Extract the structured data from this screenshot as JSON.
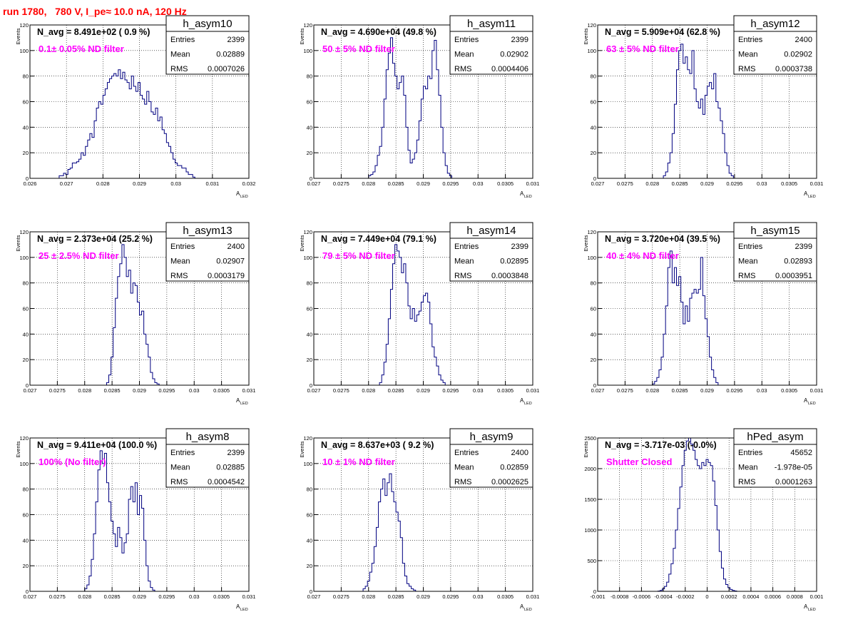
{
  "header": {
    "run_title": "run 1780,   780 V, I_pe≈ 10.0 nA, 120 Hz"
  },
  "colors": {
    "hist_line": "#000080",
    "annotation": "#ff00ff",
    "title": "#ff0000",
    "frame": "#000000",
    "grid": "#000000"
  },
  "chart_data": [
    {
      "type": "bar",
      "name": "h_asym10",
      "navg": "N_avg = 8.491e+02 ( 0.9 %)",
      "filter": "0.1± 0.05% ND filter",
      "stats": {
        "entries": "2399",
        "mean": "0.02889",
        "rms": "0.0007026"
      },
      "xlabel": "A",
      "xlabel_sub": "LED",
      "ylabel": "Events",
      "xlim": [
        0.026,
        0.032
      ],
      "ylim": [
        0,
        120
      ],
      "xticks": [
        0.026,
        0.027,
        0.028,
        0.029,
        0.03,
        0.031,
        0.032
      ],
      "xtick_labels": [
        "0.026",
        "0.027",
        "0.028",
        "0.029",
        "0.03",
        "0.031",
        "0.032"
      ],
      "yticks": [
        0,
        20,
        40,
        60,
        80,
        100,
        120
      ],
      "ytick_labels": [
        "0",
        "20",
        "40",
        "60",
        "80",
        "100",
        "120"
      ],
      "bin_start": 0.0268,
      "bin_width": 6e-05,
      "values": [
        2,
        2,
        4,
        3,
        7,
        8,
        12,
        12,
        13,
        15,
        20,
        18,
        25,
        30,
        35,
        32,
        45,
        55,
        60,
        58,
        65,
        70,
        75,
        78,
        80,
        82,
        80,
        85,
        78,
        83,
        77,
        75,
        70,
        80,
        72,
        68,
        75,
        65,
        62,
        58,
        68,
        60,
        52,
        50,
        55,
        45,
        48,
        38,
        35,
        28,
        25,
        20,
        15,
        12,
        10,
        10,
        8,
        8,
        5,
        3,
        3,
        1
      ]
    },
    {
      "type": "bar",
      "name": "h_asym11",
      "navg": "N_avg = 4.690e+04 (49.8 %)",
      "filter": "50 ± 5% ND filter",
      "stats": {
        "entries": "2399",
        "mean": "0.02902",
        "rms": "0.0004406"
      },
      "xlabel": "A",
      "xlabel_sub": "LED",
      "ylabel": "Events",
      "xlim": [
        0.027,
        0.031
      ],
      "ylim": [
        0,
        120
      ],
      "xticks": [
        0.027,
        0.0275,
        0.028,
        0.0285,
        0.029,
        0.0295,
        0.03,
        0.0305,
        0.031
      ],
      "xtick_labels": [
        "0.027",
        "0.0275",
        "0.028",
        "0.0285",
        "0.029",
        "0.0295",
        "0.03",
        "0.0305",
        "0.031"
      ],
      "yticks": [
        0,
        20,
        40,
        60,
        80,
        100,
        120
      ],
      "ytick_labels": [
        "0",
        "20",
        "40",
        "60",
        "80",
        "100",
        "120"
      ],
      "bin_start": 0.028,
      "bin_width": 4e-05,
      "values": [
        2,
        3,
        5,
        10,
        18,
        25,
        40,
        62,
        85,
        98,
        110,
        90,
        80,
        70,
        75,
        80,
        65,
        40,
        22,
        12,
        15,
        20,
        30,
        45,
        62,
        72,
        70,
        80,
        78,
        100,
        108,
        85,
        65,
        40,
        20,
        10,
        4,
        2
      ]
    },
    {
      "type": "bar",
      "name": "h_asym12",
      "navg": "N_avg = 5.909e+04 (62.8 %)",
      "filter": "63 ± 5% ND filter",
      "stats": {
        "entries": "2400",
        "mean": "0.02902",
        "rms": "0.0003738"
      },
      "xlabel": "A",
      "xlabel_sub": "LED",
      "ylabel": "Events",
      "xlim": [
        0.027,
        0.031
      ],
      "ylim": [
        0,
        120
      ],
      "xticks": [
        0.027,
        0.0275,
        0.028,
        0.0285,
        0.029,
        0.0295,
        0.03,
        0.0305,
        0.031
      ],
      "xtick_labels": [
        "0.027",
        "0.0275",
        "0.028",
        "0.0285",
        "0.029",
        "0.0295",
        "0.03",
        "0.0305",
        "0.031"
      ],
      "yticks": [
        0,
        20,
        40,
        60,
        80,
        100,
        120
      ],
      "ytick_labels": [
        "0",
        "20",
        "40",
        "60",
        "80",
        "100",
        "120"
      ],
      "bin_start": 0.0282,
      "bin_width": 4e-05,
      "values": [
        2,
        5,
        12,
        20,
        35,
        58,
        85,
        100,
        105,
        90,
        95,
        85,
        82,
        100,
        70,
        60,
        55,
        62,
        50,
        65,
        72,
        75,
        70,
        82,
        60,
        55,
        45,
        35,
        20,
        10,
        4,
        2
      ]
    },
    {
      "type": "bar",
      "name": "h_asym13",
      "navg": "N_avg = 2.373e+04 (25.2 %)",
      "filter": "25 ± 2.5% ND filter",
      "stats": {
        "entries": "2400",
        "mean": "0.02907",
        "rms": "0.0003179"
      },
      "xlabel": "A",
      "xlabel_sub": "LED",
      "ylabel": "Events",
      "xlim": [
        0.027,
        0.031
      ],
      "ylim": [
        0,
        120
      ],
      "xticks": [
        0.027,
        0.0275,
        0.028,
        0.0285,
        0.029,
        0.0295,
        0.03,
        0.0305,
        0.031
      ],
      "xtick_labels": [
        "0.027",
        "0.0275",
        "0.028",
        "0.0285",
        "0.029",
        "0.0295",
        "0.03",
        "0.0305",
        "0.031"
      ],
      "yticks": [
        0,
        20,
        40,
        60,
        80,
        100,
        120
      ],
      "ytick_labels": [
        "0",
        "20",
        "40",
        "60",
        "80",
        "100",
        "120"
      ],
      "bin_start": 0.0284,
      "bin_width": 4e-05,
      "values": [
        2,
        8,
        22,
        45,
        68,
        85,
        95,
        110,
        100,
        85,
        90,
        72,
        80,
        78,
        65,
        55,
        58,
        40,
        32,
        22,
        10,
        5,
        2,
        1
      ]
    },
    {
      "type": "bar",
      "name": "h_asym14",
      "navg": "N_avg = 7.449e+04 (79.1 %)",
      "filter": "79 ± 5% ND filter",
      "stats": {
        "entries": "2399",
        "mean": "0.02895",
        "rms": "0.0003848"
      },
      "xlabel": "A",
      "xlabel_sub": "LED",
      "ylabel": "Events",
      "xlim": [
        0.027,
        0.031
      ],
      "ylim": [
        0,
        120
      ],
      "xticks": [
        0.027,
        0.0275,
        0.028,
        0.0285,
        0.029,
        0.0295,
        0.03,
        0.0305,
        0.031
      ],
      "xtick_labels": [
        "0.027",
        "0.0275",
        "0.028",
        "0.0285",
        "0.029",
        "0.0295",
        "0.03",
        "0.0305",
        "0.031"
      ],
      "yticks": [
        0,
        20,
        40,
        60,
        80,
        100,
        120
      ],
      "ytick_labels": [
        "0",
        "20",
        "40",
        "60",
        "80",
        "100",
        "120"
      ],
      "bin_start": 0.0282,
      "bin_width": 4e-05,
      "values": [
        2,
        8,
        18,
        32,
        52,
        75,
        95,
        110,
        105,
        100,
        88,
        95,
        80,
        62,
        52,
        60,
        50,
        55,
        58,
        65,
        70,
        72,
        65,
        48,
        30,
        22,
        15,
        8,
        4,
        2
      ]
    },
    {
      "type": "bar",
      "name": "h_asym15",
      "navg": "N_avg = 3.720e+04 (39.5 %)",
      "filter": "40 ± 4% ND filter",
      "stats": {
        "entries": "2399",
        "mean": "0.02893",
        "rms": "0.0003951"
      },
      "xlabel": "A",
      "xlabel_sub": "LED",
      "ylabel": "Events",
      "xlim": [
        0.027,
        0.031
      ],
      "ylim": [
        0,
        120
      ],
      "xticks": [
        0.027,
        0.0275,
        0.028,
        0.0285,
        0.029,
        0.0295,
        0.03,
        0.0305,
        0.031
      ],
      "xtick_labels": [
        "0.027",
        "0.0275",
        "0.028",
        "0.0285",
        "0.029",
        "0.0295",
        "0.03",
        "0.0305",
        "0.031"
      ],
      "yticks": [
        0,
        20,
        40,
        60,
        80,
        100,
        120
      ],
      "ytick_labels": [
        "0",
        "20",
        "40",
        "60",
        "80",
        "100",
        "120"
      ],
      "bin_start": 0.028,
      "bin_width": 4e-05,
      "values": [
        1,
        3,
        6,
        12,
        22,
        40,
        62,
        92,
        105,
        80,
        92,
        78,
        85,
        65,
        48,
        62,
        50,
        68,
        72,
        75,
        72,
        75,
        100,
        70,
        52,
        38,
        22,
        12,
        6,
        2
      ]
    },
    {
      "type": "bar",
      "name": "h_asym8",
      "navg": "N_avg = 9.411e+04 (100.0 %)",
      "filter": "100% (No filter)",
      "stats": {
        "entries": "2399",
        "mean": "0.02885",
        "rms": "0.0004542"
      },
      "xlabel": "A",
      "xlabel_sub": "LED",
      "ylabel": "Events",
      "xlim": [
        0.027,
        0.031
      ],
      "ylim": [
        0,
        120
      ],
      "xticks": [
        0.027,
        0.0275,
        0.028,
        0.0285,
        0.029,
        0.0295,
        0.03,
        0.0305,
        0.031
      ],
      "xtick_labels": [
        "0.027",
        "0.0275",
        "0.028",
        "0.0285",
        "0.029",
        "0.0295",
        "0.03",
        "0.0305",
        "0.031"
      ],
      "yticks": [
        0,
        20,
        40,
        60,
        80,
        100,
        120
      ],
      "ytick_labels": [
        "0",
        "20",
        "40",
        "60",
        "80",
        "100",
        "120"
      ],
      "bin_start": 0.028,
      "bin_width": 4e-05,
      "values": [
        2,
        5,
        12,
        25,
        45,
        70,
        95,
        110,
        100,
        108,
        85,
        70,
        55,
        45,
        35,
        50,
        42,
        30,
        38,
        45,
        72,
        82,
        70,
        85,
        60,
        75,
        65,
        40,
        20,
        8,
        3,
        1
      ]
    },
    {
      "type": "bar",
      "name": "h_asym9",
      "navg": "N_avg = 8.637e+03 ( 9.2 %)",
      "filter": "10 ± 1% ND filter",
      "stats": {
        "entries": "2400",
        "mean": "0.02859",
        "rms": "0.0002625"
      },
      "xlabel": "A",
      "xlabel_sub": "LED",
      "ylabel": "Events",
      "xlim": [
        0.027,
        0.031
      ],
      "ylim": [
        0,
        120
      ],
      "xticks": [
        0.027,
        0.0275,
        0.028,
        0.0285,
        0.029,
        0.0295,
        0.03,
        0.0305,
        0.031
      ],
      "xtick_labels": [
        "0.027",
        "0.0275",
        "0.028",
        "0.0285",
        "0.029",
        "0.0295",
        "0.03",
        "0.0305",
        "0.031"
      ],
      "yticks": [
        0,
        20,
        40,
        60,
        80,
        100,
        120
      ],
      "ytick_labels": [
        "0",
        "20",
        "40",
        "60",
        "80",
        "100",
        "120"
      ],
      "bin_start": 0.0279,
      "bin_width": 4e-05,
      "values": [
        2,
        4,
        8,
        15,
        22,
        35,
        50,
        70,
        80,
        88,
        75,
        85,
        92,
        78,
        70,
        62,
        55,
        42,
        22,
        12,
        6,
        4,
        2,
        1
      ]
    },
    {
      "type": "bar",
      "name": "hPed_asym",
      "navg": "N_avg = -3.717e-03 (-0.0%)",
      "filter": "Shutter Closed",
      "stats": {
        "entries": "45652",
        "mean": "-1.978e-05",
        "rms": "0.0001263"
      },
      "xlabel": "A",
      "xlabel_sub": "LED",
      "ylabel": "Events",
      "xlim": [
        -0.001,
        0.001
      ],
      "ylim": [
        0,
        2500
      ],
      "xticks": [
        -0.001,
        -0.0008,
        -0.0006,
        -0.0004,
        -0.0002,
        0,
        0.0002,
        0.0004,
        0.0006,
        0.0008,
        0.001
      ],
      "xtick_labels": [
        "-0.001",
        "-0.0008",
        "-0.0006",
        "-0.0004",
        "-0.0002",
        "0",
        "0.0002",
        "0.0004",
        "0.0006",
        "0.0008",
        "0.001"
      ],
      "yticks": [
        0,
        500,
        1000,
        1500,
        2000,
        2500
      ],
      "ytick_labels": [
        "0",
        "500",
        "1000",
        "1500",
        "2000",
        "2500"
      ],
      "bin_start": -0.00045,
      "bin_width": 2e-05,
      "values": [
        5,
        15,
        40,
        80,
        150,
        280,
        450,
        700,
        1000,
        1350,
        1700,
        2050,
        2300,
        2450,
        2500,
        2400,
        2300,
        2150,
        2050,
        2000,
        2100,
        2050,
        2150,
        2100,
        2050,
        1800,
        1400,
        1000,
        650,
        380,
        200,
        110,
        60,
        30,
        15,
        6
      ]
    }
  ]
}
